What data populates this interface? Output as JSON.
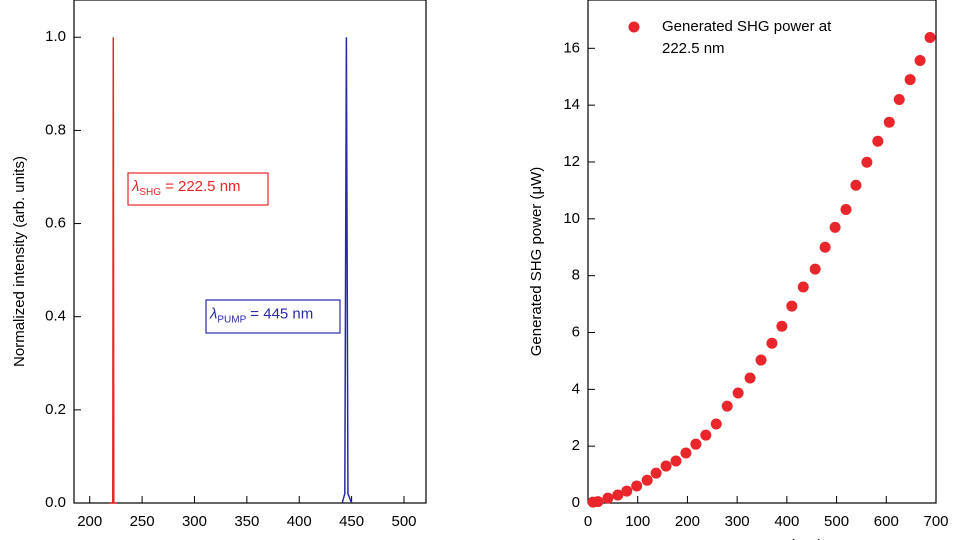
{
  "chart_data": [
    {
      "type": "line",
      "ylabel": "Normalized intensity (arb. units)",
      "xlim": [
        185,
        521
      ],
      "xticks": [
        200,
        250,
        300,
        350,
        400,
        450,
        500
      ],
      "ylim": [
        0,
        1.08
      ],
      "yticks": [
        {
          "value": 0,
          "label": "0.0"
        },
        {
          "value": 0.2,
          "label": "0.2"
        },
        {
          "value": 0.4,
          "label": "0.4"
        },
        {
          "value": 0.6,
          "label": "0.6"
        },
        {
          "value": 0.8,
          "label": "0.8"
        },
        {
          "value": 1,
          "label": "1.0"
        }
      ],
      "series": [
        {
          "color": "#e8262b",
          "x": [
            219,
            222,
            222.5,
            223,
            226
          ],
          "values": [
            0,
            0,
            1,
            0,
            0
          ]
        },
        {
          "color": "#2a2aa8",
          "x": [
            441,
            443.5,
            445,
            446.5,
            450
          ],
          "values": [
            0,
            0.02,
            1,
            0.02,
            0
          ]
        }
      ],
      "annotations": [
        {
          "symbol": "λ",
          "subscript": "SHG",
          "text": "= 222.5 nm",
          "color": "#e8262b"
        },
        {
          "symbol": "λ",
          "subscript": "PUMP",
          "text": "= 445 nm",
          "color": "#2a2aa8"
        }
      ]
    },
    {
      "type": "scatter",
      "xlabel": "Pump power (μW)",
      "ylabel": "Generated SHG power (μW)",
      "xlim": [
        0,
        700
      ],
      "xticks": [
        0,
        100,
        200,
        300,
        400,
        500,
        600,
        700
      ],
      "ylim": [
        0,
        17.7
      ],
      "yticks": [
        0,
        2,
        4,
        6,
        8,
        10,
        12,
        14,
        16
      ],
      "series": [
        {
          "name": "Generated SHG power at 222.5 nm",
          "color": "#e8262b",
          "x": [
            10,
            20,
            40,
            60,
            78,
            98,
            119,
            137,
            157,
            177,
            197,
            217,
            237,
            258,
            280,
            302,
            326,
            348,
            370,
            390,
            410,
            433,
            457,
            477,
            497,
            519,
            539,
            561,
            583,
            606,
            626,
            648,
            668,
            688
          ],
          "values": [
            0.03,
            0.05,
            0.17,
            0.28,
            0.42,
            0.6,
            0.8,
            1.05,
            1.3,
            1.48,
            1.76,
            2.07,
            2.39,
            2.78,
            3.41,
            3.87,
            4.4,
            5.03,
            5.62,
            6.22,
            6.93,
            7.6,
            8.23,
            9.0,
            9.7,
            10.33,
            11.18,
            11.99,
            12.73,
            13.4,
            14.2,
            14.9,
            15.57,
            16.38
          ]
        }
      ]
    }
  ]
}
